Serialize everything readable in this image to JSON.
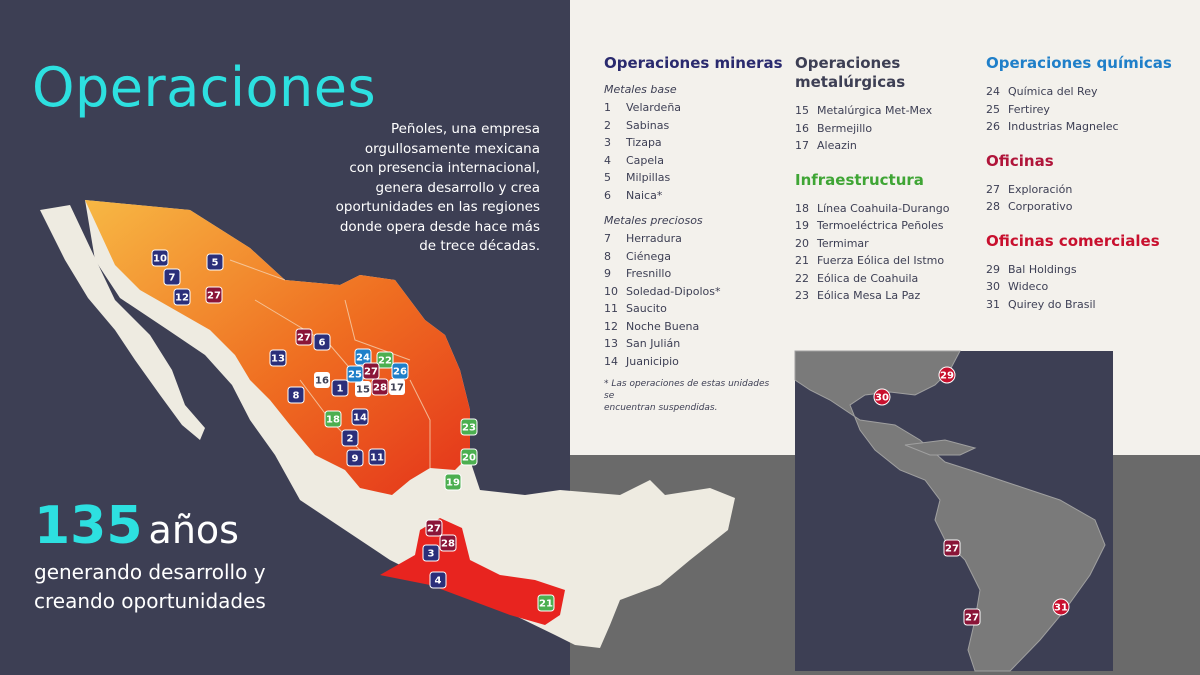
{
  "title": "Operaciones",
  "intro_lines": [
    "Peñoles, una empresa",
    "orgullosamente mexicana",
    "con presencia internacional,",
    "genera desarrollo y crea",
    "oportunidades en las regiones",
    "donde opera desde hace más",
    "de trece décadas."
  ],
  "years": {
    "number": "135",
    "unit": "años",
    "line1": "generando desarrollo y",
    "line2": "creando oportunidades"
  },
  "legend": {
    "mineras": {
      "heading": "Operaciones mineras",
      "base_label": "Metales base",
      "base": [
        {
          "n": "1",
          "name": "Velardeña"
        },
        {
          "n": "2",
          "name": "Sabinas"
        },
        {
          "n": "3",
          "name": "Tizapa"
        },
        {
          "n": "4",
          "name": "Capela"
        },
        {
          "n": "5",
          "name": "Milpillas"
        },
        {
          "n": "6",
          "name": "Naica*"
        }
      ],
      "preciosos_label": "Metales preciosos",
      "preciosos": [
        {
          "n": "7",
          "name": "Herradura"
        },
        {
          "n": "8",
          "name": "Ciénega"
        },
        {
          "n": "9",
          "name": "Fresnillo"
        },
        {
          "n": "10",
          "name": "Soledad-Dipolos*"
        },
        {
          "n": "11",
          "name": "Saucito"
        },
        {
          "n": "12",
          "name": "Noche Buena"
        },
        {
          "n": "13",
          "name": "San Julián"
        },
        {
          "n": "14",
          "name": "Juanicipio"
        }
      ],
      "note_line1": "* Las operaciones de estas unidades se",
      "note_line2": "encuentran suspendidas."
    },
    "metalurgicas": {
      "heading_line1": "Operaciones",
      "heading_line2": "metalúrgicas",
      "items": [
        {
          "n": "15",
          "name": "Metalúrgica Met-Mex"
        },
        {
          "n": "16",
          "name": "Bermejillo"
        },
        {
          "n": "17",
          "name": "Aleazin"
        }
      ]
    },
    "infraestructura": {
      "heading": "Infraestructura",
      "items": [
        {
          "n": "18",
          "name": "Línea Coahuila-Durango"
        },
        {
          "n": "19",
          "name": "Termoeléctrica Peñoles"
        },
        {
          "n": "20",
          "name": "Termimar"
        },
        {
          "n": "21",
          "name": "Fuerza Eólica del Istmo"
        },
        {
          "n": "22",
          "name": "Eólica de Coahuila"
        },
        {
          "n": "23",
          "name": "Eólica Mesa La Paz"
        }
      ]
    },
    "quimicas": {
      "heading": "Operaciones químicas",
      "items": [
        {
          "n": "24",
          "name": "Química del Rey"
        },
        {
          "n": "25",
          "name": "Fertirey"
        },
        {
          "n": "26",
          "name": "Industrias Magnelec"
        }
      ]
    },
    "oficinas": {
      "heading": "Oficinas",
      "items": [
        {
          "n": "27",
          "name": "Exploración"
        },
        {
          "n": "28",
          "name": "Corporativo"
        }
      ]
    },
    "comerciales": {
      "heading": "Oficinas comerciales",
      "items": [
        {
          "n": "29",
          "name": "Bal Holdings"
        },
        {
          "n": "30",
          "name": "Wideco"
        },
        {
          "n": "31",
          "name": "Quirey do Brasil"
        }
      ]
    }
  },
  "colors": {
    "mining": "#2b2f7a",
    "metallurgical": "#ffffff",
    "infrastructure": "#4caf50",
    "chemical": "#1f7fc9",
    "office": "#8a1538",
    "commercial": "#c8102e",
    "accent": "#2de0e0"
  },
  "markers_mexico": [
    "10",
    "5",
    "7",
    "12",
    "27",
    "27",
    "6",
    "13",
    "16",
    "1",
    "15",
    "17",
    "24",
    "22",
    "25",
    "27",
    "28",
    "26",
    "8",
    "18",
    "14",
    "2",
    "9",
    "11",
    "23",
    "20",
    "19",
    "27",
    "28",
    "3",
    "4",
    "21"
  ],
  "markers_world": [
    "29",
    "30",
    "27",
    "27",
    "31"
  ]
}
